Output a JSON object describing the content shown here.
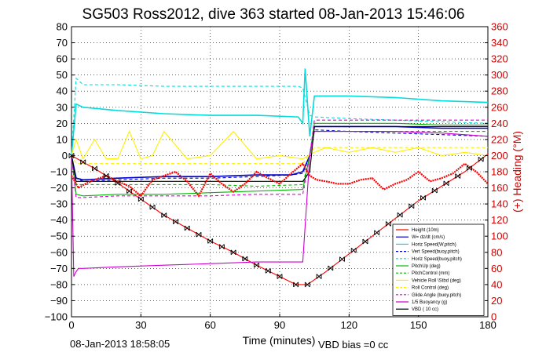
{
  "chart_data": {
    "type": "line",
    "title": "SG503 Ross2012, dive 363 started 08-Jan-2013 15:46:06",
    "xlabel": "Time (minutes)",
    "ylabel_right": "(+) Heading (°M)",
    "xlim": [
      0,
      180
    ],
    "ylim_left": [
      -100,
      80
    ],
    "ylim_right": [
      0,
      360
    ],
    "x_ticks": [
      0,
      30,
      60,
      90,
      120,
      150,
      180
    ],
    "y_left_ticks": [
      -100,
      -90,
      -80,
      -70,
      -60,
      -50,
      -40,
      -30,
      -20,
      -10,
      0,
      10,
      20,
      30,
      40,
      50,
      60,
      70,
      80
    ],
    "y_right_ticks": [
      0,
      20,
      40,
      60,
      80,
      100,
      120,
      140,
      160,
      180,
      200,
      220,
      240,
      260,
      280,
      300,
      320,
      340,
      360
    ],
    "grid": true,
    "legend_position": "bottom-right",
    "footer_left": "08-Jan-2013 18:58:05",
    "footer_right": "VBD bias =0 cc",
    "colors": {
      "heading": "#ff0000",
      "right_axis": "#cc0000"
    },
    "series": [
      {
        "name": "Height (10m)",
        "color": "#ff0000",
        "style": "solid",
        "x": [
          0,
          10,
          20,
          30,
          40,
          50,
          60,
          70,
          80,
          90,
          97,
          102,
          110,
          120,
          130,
          140,
          150,
          160,
          170,
          180
        ],
        "y": [
          0,
          -8,
          -17,
          -27,
          -37,
          -45,
          -53,
          -60,
          -68,
          -75,
          -80,
          -80,
          -72,
          -61,
          -50,
          -39,
          -28,
          -19,
          -10,
          1
        ]
      },
      {
        "name": "W= dz/dt (cm/s)",
        "color": "#0000cc",
        "style": "solid",
        "x": [
          0,
          2,
          5,
          20,
          40,
          60,
          80,
          95,
          100,
          103,
          105,
          120,
          140,
          160,
          180
        ],
        "y": [
          0,
          -14,
          -15,
          -14,
          -13,
          -13,
          -12,
          -12,
          -10,
          0,
          18,
          18,
          18,
          17,
          17
        ]
      },
      {
        "name": "Horiz Speed(W,pitch)",
        "color": "#00dddd",
        "style": "solid",
        "x": [
          0,
          2,
          5,
          20,
          40,
          60,
          80,
          98,
          100,
          101,
          103,
          105,
          120,
          140,
          160,
          180
        ],
        "y": [
          0,
          32,
          30,
          28,
          26,
          25,
          25,
          24,
          20,
          54,
          12,
          37,
          37,
          36,
          34,
          33
        ]
      },
      {
        "name": "Vert Speed(buoy,pitch)",
        "color": "#0000cc",
        "style": "dashed",
        "x": [
          0,
          2,
          5,
          20,
          40,
          60,
          80,
          95,
          100,
          103,
          105,
          120,
          140,
          160,
          180
        ],
        "y": [
          0,
          -14,
          -16,
          -15,
          -14,
          -14,
          -13,
          -12,
          -11,
          0,
          16,
          15,
          14,
          13,
          12
        ]
      },
      {
        "name": "Horiz Speed(buoy,pitch)",
        "color": "#00dddd",
        "style": "dashed",
        "x": [
          0,
          2,
          5,
          20,
          40,
          60,
          80,
          98,
          100,
          103,
          105,
          120,
          140,
          160,
          180
        ],
        "y": [
          0,
          48,
          44,
          44,
          43,
          43,
          43,
          43,
          42,
          25,
          24,
          23,
          22,
          21,
          20
        ]
      },
      {
        "name": "PitchUp (deg)",
        "color": "#00bb00",
        "style": "solid",
        "x": [
          0,
          2,
          5,
          20,
          40,
          60,
          80,
          100,
          103,
          105,
          120,
          140,
          160,
          180
        ],
        "y": [
          0,
          -24,
          -25,
          -24,
          -24,
          -23,
          -22,
          -21,
          0,
          20,
          20,
          20,
          19,
          19
        ]
      },
      {
        "name": "PitchControl (mm)",
        "color": "#00bb00",
        "style": "dashed",
        "x": [
          0,
          2,
          5,
          20,
          40,
          60,
          80,
          100,
          103,
          105,
          120,
          140,
          160,
          180
        ],
        "y": [
          0,
          -18,
          -18,
          -18,
          -18,
          -18,
          -19,
          -18,
          0,
          15,
          15,
          15,
          15,
          15
        ]
      },
      {
        "name": "Vehicle Roll \\Stbd (deg)",
        "color": "#ffee00",
        "style": "solid",
        "x": [
          0,
          2,
          5,
          10,
          15,
          20,
          25,
          30,
          35,
          40,
          50,
          60,
          70,
          80,
          90,
          100,
          105,
          110,
          120,
          130,
          140,
          150,
          160,
          170,
          180
        ],
        "y": [
          0,
          10,
          -2,
          10,
          -2,
          -2,
          15,
          -2,
          0,
          15,
          -2,
          0,
          15,
          -2,
          0,
          -2,
          2,
          5,
          2,
          5,
          2,
          5,
          0,
          2,
          0
        ]
      },
      {
        "name": "Roll Control (deg)",
        "color": "#ffee00",
        "style": "dashed",
        "x": [
          0,
          2,
          5,
          20,
          40,
          60,
          80,
          100,
          105,
          120,
          140,
          160,
          180
        ],
        "y": [
          0,
          -5,
          -5,
          -5,
          -5,
          -5,
          -5,
          -5,
          5,
          5,
          5,
          5,
          5
        ]
      },
      {
        "name": "Glide Angle (buoy,pitch)",
        "color": "#dd00dd",
        "style": "dashed",
        "x": [
          0,
          2,
          5,
          20,
          40,
          60,
          80,
          100,
          103,
          105,
          120,
          140,
          160,
          180
        ],
        "y": [
          0,
          -26,
          -26,
          -25,
          -25,
          -25,
          -24,
          -24,
          0,
          22,
          22,
          22,
          22,
          22
        ]
      },
      {
        "name": "1/5 Buoyancy (g)",
        "color": "#cc00cc",
        "style": "solid",
        "x": [
          0,
          1,
          2,
          3,
          5,
          20,
          40,
          60,
          80,
          99,
          100,
          103,
          105,
          120,
          140,
          160,
          180
        ],
        "y": [
          0,
          -75,
          -72,
          -70,
          -70,
          -69,
          -68,
          -67,
          -66,
          -66,
          -66,
          0,
          15,
          15,
          15,
          14,
          12
        ]
      },
      {
        "name": "VBD ( 10 cc)",
        "color": "#000000",
        "style": "solid",
        "x": [
          0,
          2,
          5,
          20,
          40,
          60,
          80,
          100,
          103,
          105,
          120,
          140,
          160,
          180
        ],
        "y": [
          0,
          -16,
          -16,
          -16,
          -16,
          -16,
          -16,
          -16,
          -10,
          18,
          18,
          18,
          18,
          18
        ]
      }
    ],
    "heading_series": {
      "axis": "right",
      "color": "#ff0000",
      "x": [
        0,
        3,
        6,
        10,
        15,
        20,
        25,
        30,
        35,
        40,
        45,
        50,
        55,
        60,
        65,
        70,
        75,
        80,
        85,
        90,
        95,
        100,
        103,
        106,
        110,
        115,
        120,
        125,
        130,
        135,
        140,
        145,
        150,
        155,
        160,
        165,
        170,
        175,
        180
      ],
      "y": [
        175,
        160,
        165,
        170,
        175,
        168,
        162,
        150,
        170,
        175,
        180,
        168,
        150,
        178,
        165,
        155,
        165,
        180,
        172,
        165,
        178,
        190,
        175,
        170,
        168,
        165,
        165,
        170,
        172,
        158,
        165,
        170,
        180,
        168,
        172,
        178,
        190,
        180,
        165
      ]
    },
    "height_markers": {
      "x": [
        0,
        5,
        10,
        15,
        20,
        25,
        30,
        35,
        40,
        45,
        50,
        55,
        60,
        65,
        70,
        75,
        80,
        85,
        90,
        97,
        102,
        107,
        112,
        117,
        122,
        127,
        132,
        137,
        142,
        147,
        152,
        157,
        162,
        167,
        172,
        177
      ]
    }
  }
}
